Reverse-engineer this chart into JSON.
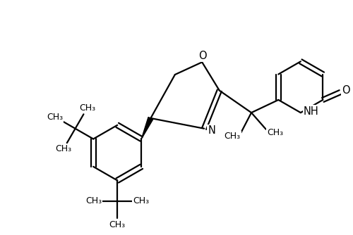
{
  "bg_color": "#ffffff",
  "line_color": "#000000",
  "line_width": 1.6,
  "font_size": 10.5,
  "small_font": 9.0,
  "figsize": [
    5.0,
    3.34
  ],
  "dpi": 100,
  "xlim": [
    0,
    10
  ],
  "ylim": [
    0,
    6.68
  ]
}
